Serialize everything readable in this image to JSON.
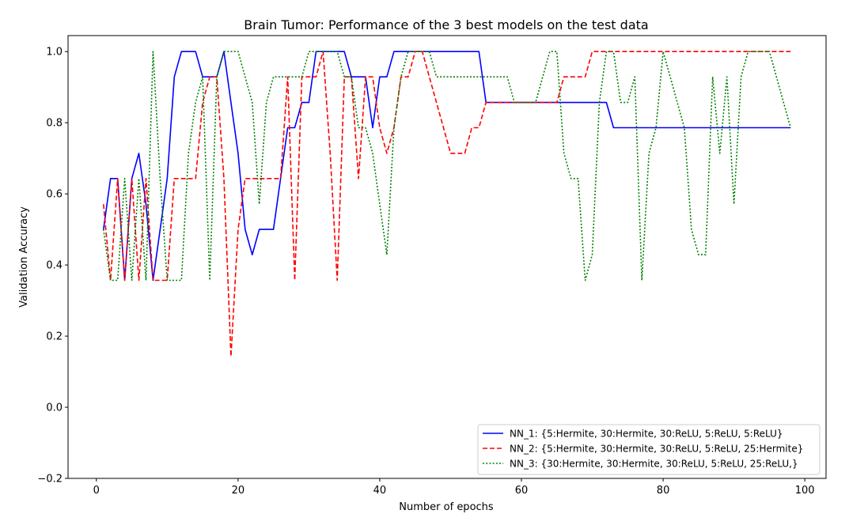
{
  "chart_data": {
    "type": "line",
    "title": "Brain Tumor: Performance of the 3 best models on the test data",
    "xlabel": "Number of epochs",
    "ylabel": "Validation Accuracy",
    "xlim": [
      -4,
      103
    ],
    "ylim": [
      -0.2,
      1.045
    ],
    "xticks": [
      0,
      20,
      40,
      60,
      80,
      100
    ],
    "yticks": [
      -0.2,
      0.0,
      0.2,
      0.4,
      0.6,
      0.8,
      1.0
    ],
    "xtick_labels": [
      "0",
      "20",
      "40",
      "60",
      "80",
      "100"
    ],
    "ytick_labels": [
      "−0.2",
      "0.0",
      "0.2",
      "0.4",
      "0.6",
      "0.8",
      "1.0"
    ],
    "grid": false,
    "legend_position": "lower-right",
    "series": [
      {
        "name": "NN_1: {5:Hermite, 30:Hermite, 30:ReLU, 5:ReLU, 5:ReLU}",
        "color": "#0000ff",
        "style": "solid",
        "x": [
          1,
          2,
          3,
          4,
          5,
          6,
          7,
          8,
          9,
          10,
          11,
          12,
          13,
          14,
          15,
          16,
          17,
          18,
          19,
          20,
          21,
          22,
          23,
          24,
          25,
          26,
          27,
          28,
          29,
          30,
          31,
          32,
          33,
          34,
          35,
          36,
          37,
          38,
          39,
          40,
          41,
          42,
          43,
          44,
          45,
          46,
          47,
          48,
          49,
          50,
          51,
          52,
          53,
          54,
          55,
          56,
          57,
          58,
          59,
          60,
          61,
          62,
          63,
          64,
          65,
          66,
          67,
          68,
          69,
          70,
          71,
          72,
          73,
          74,
          75,
          76,
          77,
          78,
          79,
          80,
          81,
          82,
          83,
          84,
          85,
          86,
          87,
          88,
          89,
          90,
          91,
          92,
          93,
          94,
          95,
          96,
          97,
          98
        ],
        "y": [
          0.5,
          0.643,
          0.643,
          0.357,
          0.643,
          0.714,
          0.571,
          0.357,
          0.5,
          0.643,
          0.929,
          1.0,
          1.0,
          1.0,
          0.929,
          0.929,
          0.929,
          1.0,
          0.857,
          0.714,
          0.5,
          0.429,
          0.5,
          0.5,
          0.5,
          0.643,
          0.786,
          0.786,
          0.857,
          0.857,
          1.0,
          1.0,
          1.0,
          1.0,
          1.0,
          0.929,
          0.929,
          0.929,
          0.786,
          0.929,
          0.929,
          1.0,
          1.0,
          1.0,
          1.0,
          1.0,
          1.0,
          1.0,
          1.0,
          1.0,
          1.0,
          1.0,
          1.0,
          1.0,
          0.857,
          0.857,
          0.857,
          0.857,
          0.857,
          0.857,
          0.857,
          0.857,
          0.857,
          0.857,
          0.857,
          0.857,
          0.857,
          0.857,
          0.857,
          0.857,
          0.857,
          0.857,
          0.786,
          0.786,
          0.786,
          0.786,
          0.786,
          0.786,
          0.786,
          0.786,
          0.786,
          0.786,
          0.786,
          0.786,
          0.786,
          0.786,
          0.786,
          0.786,
          0.786,
          0.786,
          0.786,
          0.786,
          0.786,
          0.786,
          0.786,
          0.786,
          0.786,
          0.786
        ]
      },
      {
        "name": "NN_2: {5:Hermite, 30:Hermite, 30:ReLU, 5:ReLU, 25:Hermite}",
        "color": "#ff0000",
        "style": "dashed",
        "x": [
          1,
          2,
          3,
          4,
          5,
          6,
          7,
          8,
          9,
          10,
          11,
          12,
          13,
          14,
          15,
          16,
          17,
          18,
          19,
          20,
          21,
          22,
          23,
          24,
          25,
          26,
          27,
          28,
          29,
          30,
          31,
          32,
          33,
          34,
          35,
          36,
          37,
          38,
          39,
          40,
          41,
          42,
          43,
          44,
          45,
          46,
          47,
          48,
          49,
          50,
          51,
          52,
          53,
          54,
          55,
          56,
          57,
          58,
          59,
          60,
          61,
          62,
          63,
          64,
          65,
          66,
          67,
          68,
          69,
          70,
          71,
          72,
          73,
          74,
          75,
          76,
          77,
          78,
          79,
          80,
          81,
          82,
          83,
          84,
          85,
          86,
          87,
          88,
          89,
          90,
          91,
          92,
          93,
          94,
          95,
          96,
          97,
          98
        ],
        "y": [
          0.571,
          0.357,
          0.643,
          0.357,
          0.643,
          0.357,
          0.643,
          0.357,
          0.357,
          0.357,
          0.643,
          0.643,
          0.643,
          0.643,
          0.857,
          0.929,
          0.929,
          0.643,
          0.143,
          0.5,
          0.643,
          0.643,
          0.643,
          0.643,
          0.643,
          0.643,
          0.929,
          0.357,
          0.929,
          0.929,
          0.929,
          1.0,
          0.714,
          0.357,
          0.929,
          0.929,
          0.643,
          0.929,
          0.929,
          0.786,
          0.714,
          0.786,
          0.929,
          0.929,
          1.0,
          1.0,
          0.929,
          0.857,
          0.786,
          0.714,
          0.714,
          0.714,
          0.786,
          0.786,
          0.857,
          0.857,
          0.857,
          0.857,
          0.857,
          0.857,
          0.857,
          0.857,
          0.857,
          0.857,
          0.857,
          0.929,
          0.929,
          0.929,
          0.929,
          1.0,
          1.0,
          1.0,
          1.0,
          1.0,
          1.0,
          1.0,
          1.0,
          1.0,
          1.0,
          1.0,
          1.0,
          1.0,
          1.0,
          1.0,
          1.0,
          1.0,
          1.0,
          1.0,
          1.0,
          1.0,
          1.0,
          1.0,
          1.0,
          1.0,
          1.0,
          1.0,
          1.0,
          1.0
        ]
      },
      {
        "name": "NN_3: {30:Hermite, 30:Hermite, 30:ReLU, 5:ReLU, 25:ReLU,}",
        "color": "#008000",
        "style": "dotted",
        "x": [
          1,
          2,
          3,
          4,
          5,
          6,
          7,
          8,
          9,
          10,
          11,
          12,
          13,
          14,
          15,
          16,
          17,
          18,
          19,
          20,
          21,
          22,
          23,
          24,
          25,
          26,
          27,
          28,
          29,
          30,
          31,
          32,
          33,
          34,
          35,
          36,
          37,
          38,
          39,
          40,
          41,
          42,
          43,
          44,
          45,
          46,
          47,
          48,
          49,
          50,
          51,
          52,
          53,
          54,
          55,
          56,
          57,
          58,
          59,
          60,
          61,
          62,
          63,
          64,
          65,
          66,
          67,
          68,
          69,
          70,
          71,
          72,
          73,
          74,
          75,
          76,
          77,
          78,
          79,
          80,
          81,
          82,
          83,
          84,
          85,
          86,
          87,
          88,
          89,
          90,
          91,
          92,
          93,
          94,
          95,
          96,
          97,
          98
        ],
        "y": [
          0.5,
          0.357,
          0.357,
          0.643,
          0.357,
          0.643,
          0.357,
          1.0,
          0.643,
          0.357,
          0.357,
          0.357,
          0.714,
          0.857,
          0.929,
          0.357,
          0.929,
          1.0,
          1.0,
          1.0,
          0.929,
          0.857,
          0.571,
          0.857,
          0.929,
          0.929,
          0.929,
          0.929,
          0.929,
          1.0,
          1.0,
          1.0,
          1.0,
          1.0,
          0.929,
          0.929,
          0.786,
          0.786,
          0.714,
          0.571,
          0.429,
          0.786,
          0.929,
          1.0,
          1.0,
          1.0,
          1.0,
          0.929,
          0.929,
          0.929,
          0.929,
          0.929,
          0.929,
          0.929,
          0.929,
          0.929,
          0.929,
          0.929,
          0.857,
          0.857,
          0.857,
          0.857,
          0.929,
          1.0,
          1.0,
          0.714,
          0.643,
          0.643,
          0.357,
          0.429,
          0.857,
          1.0,
          1.0,
          0.857,
          0.857,
          0.929,
          0.357,
          0.714,
          0.786,
          1.0,
          0.929,
          0.857,
          0.786,
          0.5,
          0.429,
          0.429,
          0.929,
          0.714,
          0.929,
          0.571,
          0.929,
          1.0,
          1.0,
          1.0,
          1.0,
          0.929,
          0.857,
          0.786
        ]
      }
    ]
  }
}
